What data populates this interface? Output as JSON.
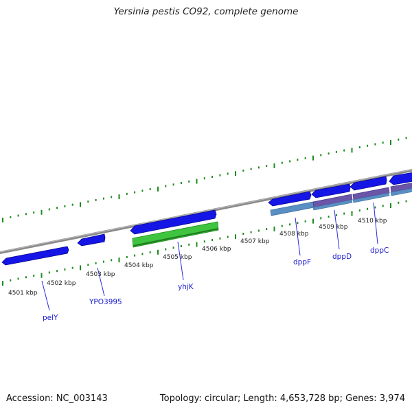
{
  "title": "Yersinia pestis CO92, complete genome",
  "accession": "Accession: NC_003143",
  "summary": "Topology: circular; Length: 4,653,728 bp; Genes: 3,974",
  "colors": {
    "backbone": "#8a8a8a",
    "forward_gene": "#1515e6",
    "reverse_gene": "#3ec43e",
    "cds_feature": "#5a8fc4",
    "overlap_feature": "#6a55a8",
    "ticks": "#1c8a1c",
    "gene_label": "#1a1ad0"
  },
  "scale_labels": [
    "4501 kbp",
    "4502 kbp",
    "4503 kbp",
    "4504 kbp",
    "4505 kbp",
    "4506 kbp",
    "4507 kbp",
    "4508 kbp",
    "4509 kbp",
    "4510 kbp"
  ],
  "gene_labels": [
    "pelY",
    "YPO3995",
    "yhjK",
    "dppF",
    "dppD",
    "dppC"
  ]
}
